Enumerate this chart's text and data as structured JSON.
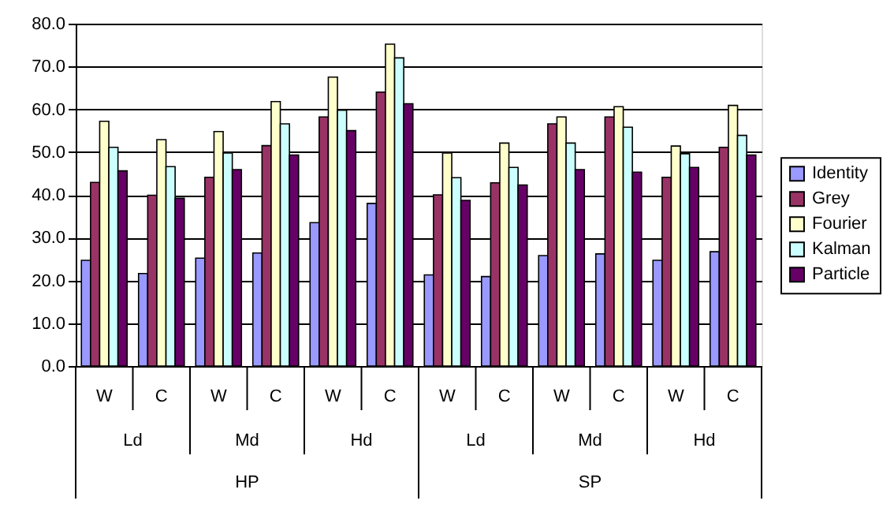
{
  "chart_data": {
    "type": "bar",
    "categories": [
      "W",
      "C",
      "W",
      "C",
      "W",
      "C",
      "W",
      "C",
      "W",
      "C",
      "W",
      "C"
    ],
    "series": [
      {
        "name": "Identity",
        "color": "#9999ff",
        "values": [
          24.7,
          21.6,
          25.2,
          26.4,
          33.5,
          38.0,
          21.3,
          20.9,
          25.8,
          26.2,
          24.7,
          26.7
        ]
      },
      {
        "name": "Grey",
        "color": "#993366",
        "values": [
          42.9,
          39.9,
          44.1,
          51.5,
          58.2,
          64.0,
          40.0,
          42.8,
          56.6,
          58.2,
          44.1,
          51.1
        ]
      },
      {
        "name": "Fourier",
        "color": "#ffffcc",
        "values": [
          57.2,
          52.9,
          54.8,
          61.8,
          67.5,
          75.2,
          49.8,
          52.1,
          58.2,
          60.6,
          51.4,
          60.9
        ]
      },
      {
        "name": "Kalman",
        "color": "#ccffff",
        "values": [
          51.1,
          46.6,
          49.8,
          56.6,
          59.8,
          72.0,
          44.0,
          46.4,
          52.1,
          55.8,
          49.6,
          53.9
        ]
      },
      {
        "name": "Particle",
        "color": "#660066",
        "values": [
          45.6,
          39.2,
          45.9,
          49.3,
          55.0,
          61.3,
          38.7,
          42.3,
          45.9,
          45.3,
          46.4,
          49.3
        ]
      }
    ],
    "annotations": [
      "Ld",
      "Md",
      "Hd",
      "Ld",
      "Md",
      "Hd",
      "HP",
      "SP"
    ],
    "ylim": [
      0,
      80
    ],
    "yticks": [
      {
        "value": 0,
        "label": "0.0"
      },
      {
        "value": 10,
        "label": "10.0"
      },
      {
        "value": 20,
        "label": "20.0"
      },
      {
        "value": 30,
        "label": "30.0"
      },
      {
        "value": 40,
        "label": "40.0"
      },
      {
        "value": 50,
        "label": "50.0"
      },
      {
        "value": 60,
        "label": "60.0"
      },
      {
        "value": 70,
        "label": "70.0"
      },
      {
        "value": 80,
        "label": "80.0"
      }
    ],
    "grid": "y",
    "legend": "right"
  }
}
